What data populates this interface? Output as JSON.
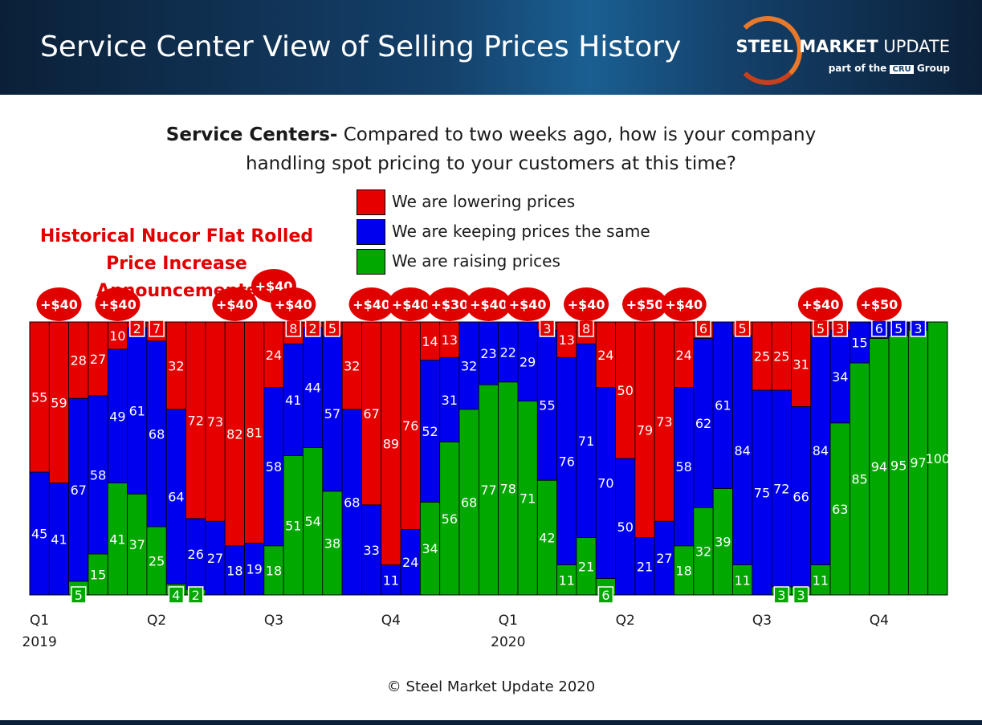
{
  "header": {
    "title": "Service Center View of Selling Prices History",
    "logo_main_bold": "STEEL MARKET",
    "logo_main_rest": " UPDATE",
    "logo_sub_prefix": "part of the",
    "logo_sub_cru": "CRU",
    "logo_sub_suffix": "Group"
  },
  "question": {
    "bold": "Service Centers-",
    "line1": " Compared to two weeks ago, how is your company",
    "line2": "handling spot pricing to your customers at this time?"
  },
  "nucor_note": {
    "line1": "Historical Nucor Flat Rolled",
    "line2": "Price Increase Announcements"
  },
  "copyright": "© Steel Market Update 2020",
  "colors": {
    "lowering": "#e60000",
    "same": "#0000ee",
    "raising": "#00a800",
    "announcement": "#e00000"
  },
  "chart_data": {
    "type": "bar",
    "stacked": true,
    "title": "Service Centers- Compared to two weeks ago, how is your company handling spot pricing to your customers at this time?",
    "ylim": [
      0,
      100
    ],
    "legend": [
      "We are lowering prices",
      "We are keeping prices the same",
      "We are raising prices"
    ],
    "series": [
      {
        "name": "We are raising prices",
        "values": [
          0,
          0,
          5,
          15,
          41,
          37,
          25,
          4,
          2,
          0,
          0,
          0,
          18,
          51,
          54,
          38,
          0,
          0,
          0,
          0,
          34,
          56,
          68,
          77,
          78,
          71,
          42,
          11,
          21,
          6,
          0,
          0,
          0,
          18,
          32,
          39,
          11,
          0,
          3,
          3,
          11,
          63,
          85,
          94,
          95,
          97,
          100
        ]
      },
      {
        "name": "We are keeping prices the same",
        "values": [
          45,
          41,
          67,
          58,
          49,
          61,
          68,
          64,
          26,
          27,
          18,
          19,
          58,
          41,
          44,
          57,
          68,
          33,
          11,
          24,
          52,
          31,
          32,
          23,
          22,
          29,
          55,
          76,
          71,
          70,
          50,
          21,
          27,
          58,
          62,
          61,
          84,
          75,
          72,
          66,
          84,
          34,
          15,
          6,
          5,
          3,
          0
        ]
      },
      {
        "name": "We are lowering prices",
        "values": [
          55,
          59,
          28,
          27,
          10,
          2,
          7,
          32,
          72,
          73,
          82,
          81,
          24,
          8,
          2,
          5,
          32,
          67,
          89,
          76,
          14,
          13,
          0,
          0,
          0,
          0,
          3,
          13,
          8,
          24,
          50,
          79,
          73,
          24,
          6,
          0,
          5,
          25,
          25,
          31,
          5,
          3,
          0,
          0,
          0,
          0,
          0
        ]
      }
    ],
    "display_labels": {
      "raising": [
        "",
        "",
        "5",
        "15",
        "41",
        "37",
        "25",
        "4",
        "2",
        "",
        "",
        "",
        "18",
        "51",
        "54",
        "38",
        "",
        "",
        "",
        "",
        "34",
        "56",
        "68",
        "77",
        "78",
        "71",
        "42",
        "11",
        "21",
        "6",
        "",
        "",
        "",
        "18",
        "32",
        "39",
        "11",
        "",
        "3",
        "3",
        "11",
        "63",
        "85",
        "94",
        "95",
        "97",
        "100"
      ],
      "same": [
        "45",
        "41",
        "67",
        "58",
        "49",
        "61",
        "68",
        "64",
        "26",
        "27",
        "18",
        "19",
        "58",
        "41",
        "44",
        "57",
        "68",
        "33",
        "11",
        "24",
        "52",
        "31",
        "32",
        "23",
        "22",
        "29",
        "55",
        "76",
        "71",
        "70",
        "50",
        "21",
        "27",
        "58",
        "62",
        "61",
        "84",
        "75",
        "72",
        "66",
        "84",
        "34",
        "15",
        "6",
        "5",
        "3",
        ""
      ],
      "lowering": [
        "55",
        "59",
        "28",
        "27",
        "10",
        "2",
        "7",
        "32",
        "72",
        "73",
        "82",
        "81",
        "24",
        "8",
        "2",
        "5",
        "32",
        "67",
        "89",
        "76",
        "14",
        "13",
        "",
        "",
        "",
        "",
        "3",
        "13",
        "8",
        "24",
        "50",
        "79",
        "73",
        "24",
        "6",
        "",
        "5",
        "25",
        "25",
        "31",
        "5",
        "3",
        "",
        "",
        "",
        "",
        ""
      ]
    },
    "boxed_labels": [
      {
        "bar": 2,
        "series": "raising"
      },
      {
        "bar": 7,
        "series": "raising"
      },
      {
        "bar": 8,
        "series": "raising"
      },
      {
        "bar": 29,
        "series": "raising"
      },
      {
        "bar": 38,
        "series": "raising"
      },
      {
        "bar": 39,
        "series": "raising"
      },
      {
        "bar": 5,
        "series": "lowering"
      },
      {
        "bar": 6,
        "series": "lowering"
      },
      {
        "bar": 13,
        "series": "lowering"
      },
      {
        "bar": 14,
        "series": "lowering"
      },
      {
        "bar": 15,
        "series": "lowering"
      },
      {
        "bar": 26,
        "series": "lowering"
      },
      {
        "bar": 28,
        "series": "lowering"
      },
      {
        "bar": 34,
        "series": "lowering"
      },
      {
        "bar": 36,
        "series": "lowering"
      },
      {
        "bar": 40,
        "series": "lowering"
      },
      {
        "bar": 41,
        "series": "lowering"
      },
      {
        "bar": 43,
        "series": "same"
      },
      {
        "bar": 44,
        "series": "same"
      },
      {
        "bar": 45,
        "series": "same"
      }
    ],
    "announcements": [
      {
        "bar": 1,
        "label": "+$40"
      },
      {
        "bar": 4,
        "label": "+$40"
      },
      {
        "bar": 10,
        "label": "+$40"
      },
      {
        "bar": 12,
        "label": "+$40",
        "raised": true
      },
      {
        "bar": 13,
        "label": "+$40"
      },
      {
        "bar": 17,
        "label": "+$40"
      },
      {
        "bar": 19,
        "label": "+$40"
      },
      {
        "bar": 21,
        "label": "+$30"
      },
      {
        "bar": 23,
        "label": "+$40"
      },
      {
        "bar": 25,
        "label": "+$40"
      },
      {
        "bar": 28,
        "label": "+$40"
      },
      {
        "bar": 31,
        "label": "+$50"
      },
      {
        "bar": 33,
        "label": "+$40"
      },
      {
        "bar": 40,
        "label": "+$40"
      },
      {
        "bar": 43,
        "label": "+$50"
      }
    ],
    "x_tick_labels": [
      {
        "bar": 0.5,
        "line1": "Q1",
        "line2": "2019"
      },
      {
        "bar": 6.5,
        "line1": "Q2",
        "line2": ""
      },
      {
        "bar": 12.5,
        "line1": "Q3",
        "line2": ""
      },
      {
        "bar": 18.5,
        "line1": "Q4",
        "line2": ""
      },
      {
        "bar": 24.5,
        "line1": "Q1",
        "line2": "2020"
      },
      {
        "bar": 30.5,
        "line1": "Q2",
        "line2": ""
      },
      {
        "bar": 37.5,
        "line1": "Q3",
        "line2": ""
      },
      {
        "bar": 43.5,
        "line1": "Q4",
        "line2": ""
      }
    ]
  }
}
